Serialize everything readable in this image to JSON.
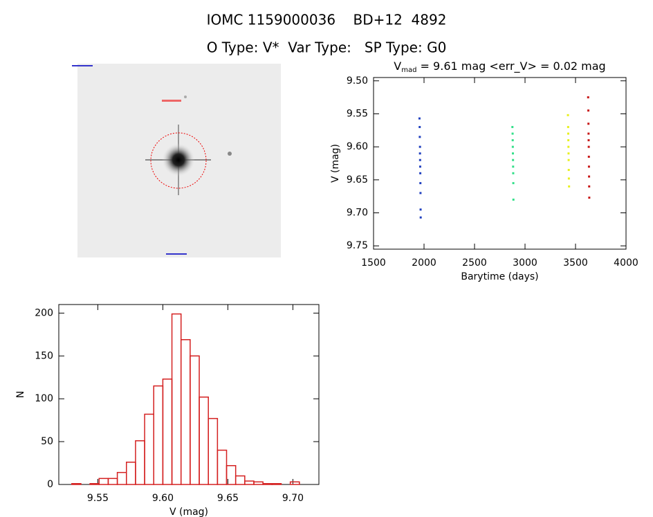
{
  "header": {
    "line1": "IOMC 1159000036    BD+12  4892",
    "line2": "O Type: V*  Var Type:   SP Type: G0"
  },
  "chart_data": [
    {
      "type": "scatter",
      "title_main": "V",
      "title_sub": "mad",
      "title_rest": " = 9.61 mag <err_V> = 0.02 mag",
      "x_label": "Barytime (days)",
      "y_label": "V (mag)",
      "xlim": [
        1500,
        4000
      ],
      "xticks": [
        1500,
        2000,
        2500,
        3000,
        3500,
        4000
      ],
      "ylim": [
        9.495,
        9.755
      ],
      "y_inverted": true,
      "yticks": [
        {
          "value": 9.5,
          "label": "9.50"
        },
        9.55,
        {
          "value": 9.6,
          "label": "9.60"
        },
        9.65,
        {
          "value": 9.7,
          "label": "9.70"
        },
        9.75
      ],
      "series": [
        {
          "color": "#1f3fbf",
          "x": [
            1955,
            1957,
            1958,
            1960,
            1960,
            1961,
            1962,
            1963,
            1964,
            1965,
            1966,
            1967
          ],
          "values": [
            9.557,
            9.57,
            9.585,
            9.6,
            9.61,
            9.62,
            9.63,
            9.64,
            9.655,
            9.67,
            9.695,
            9.707
          ]
        },
        {
          "color": "#33e08a",
          "x": [
            2875,
            2877,
            2878,
            2879,
            2880,
            2881,
            2882,
            2883,
            2884,
            2885
          ],
          "values": [
            9.57,
            9.58,
            9.59,
            9.6,
            9.61,
            9.62,
            9.63,
            9.64,
            9.655,
            9.68
          ]
        },
        {
          "color": "#e8f020",
          "x": [
            3425,
            3427,
            3428,
            3429,
            3430,
            3431,
            3432,
            3433,
            3434,
            3436
          ],
          "values": [
            9.552,
            9.57,
            9.58,
            9.59,
            9.6,
            9.61,
            9.62,
            9.635,
            9.648,
            9.66
          ]
        },
        {
          "color": "#c81818",
          "x": [
            3625,
            3627,
            3628,
            3629,
            3630,
            3631,
            3632,
            3633,
            3634,
            3635,
            3636
          ],
          "values": [
            9.525,
            9.545,
            9.565,
            9.58,
            9.59,
            9.6,
            9.615,
            9.63,
            9.645,
            9.66,
            9.677
          ]
        }
      ]
    },
    {
      "type": "histogram",
      "x_label": "V (mag)",
      "y_label": "N",
      "color": "#d42020",
      "xlim": [
        9.52,
        9.72
      ],
      "xticks": [
        9.55,
        {
          "value": 9.6,
          "label": "9.60"
        },
        9.65,
        {
          "value": 9.7,
          "label": "9.70"
        }
      ],
      "ylim": [
        0,
        210
      ],
      "yticks": [
        0,
        50,
        100,
        150,
        200
      ],
      "bins": [
        9.53,
        9.537,
        9.544,
        9.551,
        9.558,
        9.565,
        9.572,
        9.579,
        9.586,
        9.593,
        9.6,
        9.607,
        9.614,
        9.621,
        9.628,
        9.635,
        9.642,
        9.649,
        9.656,
        9.663,
        9.67,
        9.677,
        9.684,
        9.691,
        9.698,
        9.705,
        9.712
      ],
      "values": [
        1,
        0,
        1,
        7,
        7,
        14,
        26,
        51,
        82,
        115,
        123,
        199,
        169,
        150,
        102,
        77,
        40,
        22,
        10,
        4,
        3,
        1,
        1,
        0,
        3,
        0
      ]
    }
  ]
}
